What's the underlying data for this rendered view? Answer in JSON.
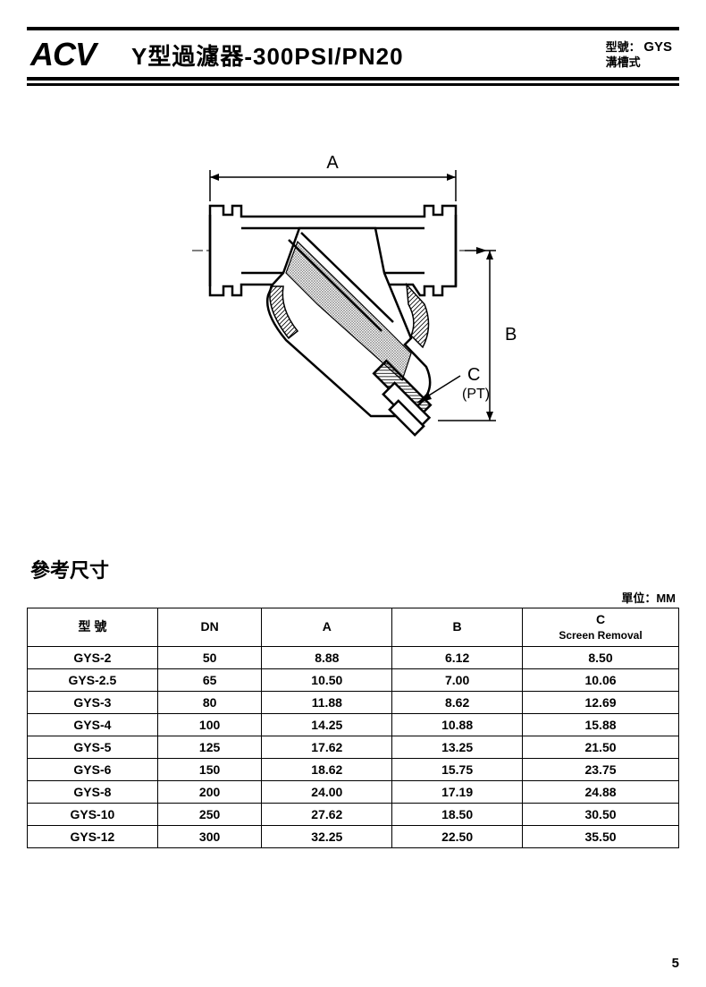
{
  "header": {
    "brand": "ACV",
    "title": "Y型過濾器-300PSI/PN20",
    "model_label": "型號：",
    "model_value": "GYS",
    "style_label": "溝槽式"
  },
  "diagram": {
    "labels": {
      "A": "A",
      "B": "B",
      "C": "C",
      "PT": "(PT)"
    },
    "colors": {
      "stroke": "#000000",
      "fill": "#ffffff",
      "hatch": "#808080"
    },
    "stroke_width": 2.5
  },
  "section": {
    "title": "參考尺寸",
    "unit": "單位：MM"
  },
  "table": {
    "columns": [
      "型 號",
      "DN",
      "A",
      "B",
      "C\nScreen Removal"
    ],
    "col_widths_pct": [
      20,
      16,
      20,
      20,
      24
    ],
    "header_fontsize": 14,
    "cell_fontsize": 14,
    "rows": [
      [
        "GYS-2",
        "50",
        "8.88",
        "6.12",
        "8.50"
      ],
      [
        "GYS-2.5",
        "65",
        "10.50",
        "7.00",
        "10.06"
      ],
      [
        "GYS-3",
        "80",
        "11.88",
        "8.62",
        "12.69"
      ],
      [
        "GYS-4",
        "100",
        "14.25",
        "10.88",
        "15.88"
      ],
      [
        "GYS-5",
        "125",
        "17.62",
        "13.25",
        "21.50"
      ],
      [
        "GYS-6",
        "150",
        "18.62",
        "15.75",
        "23.75"
      ],
      [
        "GYS-8",
        "200",
        "24.00",
        "17.19",
        "24.88"
      ],
      [
        "GYS-10",
        "250",
        "27.62",
        "18.50",
        "30.50"
      ],
      [
        "GYS-12",
        "300",
        "32.25",
        "22.50",
        "35.50"
      ]
    ]
  },
  "page_number": "5"
}
